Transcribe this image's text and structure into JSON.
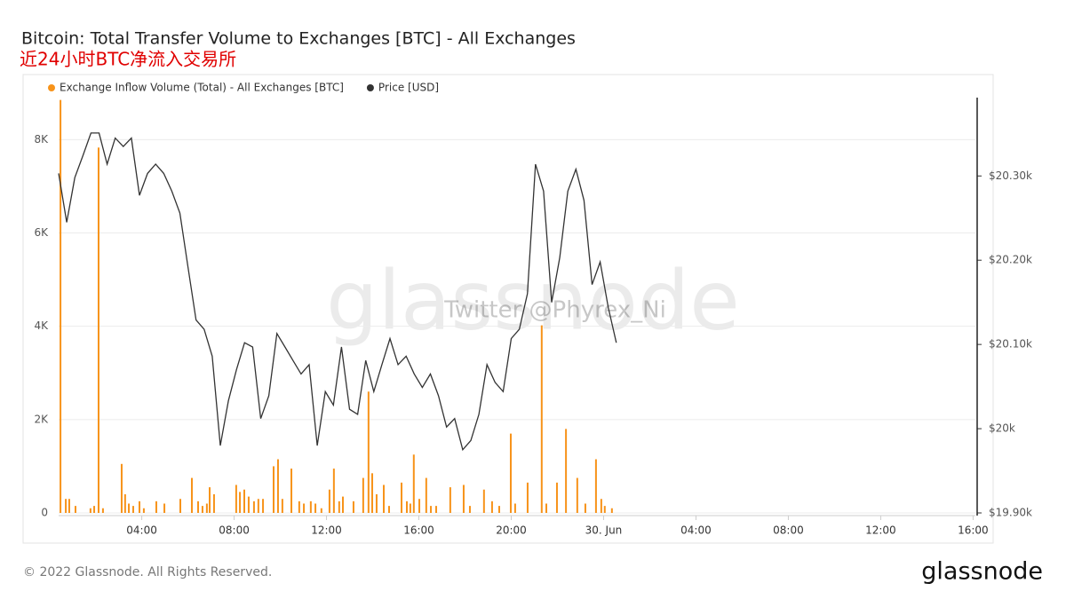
{
  "chart_data": {
    "type": "combo",
    "title": "Bitcoin: Total Transfer Volume to Exchanges [BTC] - All Exchanges",
    "subtitle": "近24小时BTC净流入交易所",
    "watermark": "glassnode",
    "annotation": "Twitter @Phyrex_Ni",
    "footer": "© 2022 Glassnode. All Rights Reserved.",
    "logo": "glassnode",
    "grid": true,
    "xlim": [
      0.4,
      40.1
    ],
    "xticks": [
      {
        "value": 4,
        "label": "04:00"
      },
      {
        "value": 8,
        "label": "08:00"
      },
      {
        "value": 12,
        "label": "12:00"
      },
      {
        "value": 16,
        "label": "16:00"
      },
      {
        "value": 20,
        "label": "20:00"
      },
      {
        "value": 24,
        "label": "30. Jun"
      },
      {
        "value": 28,
        "label": "04:00"
      },
      {
        "value": 32,
        "label": "08:00"
      },
      {
        "value": 36,
        "label": "12:00"
      },
      {
        "value": 40,
        "label": "16:00"
      }
    ],
    "ylim": [
      0,
      8900
    ],
    "yticks": [
      0,
      {
        "value": 2000,
        "label": "2K"
      },
      {
        "value": 4000,
        "label": "4K"
      },
      {
        "value": 6000,
        "label": "6K"
      },
      {
        "value": 8000,
        "label": "8K"
      }
    ],
    "y2lim": [
      19900,
      20393
    ],
    "y2ticks": [
      {
        "value": 19900,
        "label": "$19.90k"
      },
      {
        "value": 20000,
        "label": "$20k"
      },
      {
        "value": 20100,
        "label": "$20.10k"
      },
      {
        "value": 20200,
        "label": "$20.20k"
      },
      {
        "value": 20300,
        "label": "$20.30k"
      }
    ],
    "series": [
      {
        "name": "Exchange Inflow Volume (Total) - All Exchanges [BTC]",
        "type": "bar",
        "color": "#f7931a",
        "x": [
          0.48,
          0.71,
          0.86,
          1.13,
          1.78,
          1.94,
          2.13,
          2.32,
          3.13,
          3.28,
          3.44,
          3.63,
          3.9,
          4.09,
          4.63,
          4.98,
          5.67,
          6.17,
          6.44,
          6.63,
          6.82,
          6.94,
          7.13,
          8.09,
          8.25,
          8.44,
          8.63,
          8.86,
          9.05,
          9.25,
          9.71,
          9.9,
          10.09,
          10.48,
          10.82,
          11.02,
          11.32,
          11.52,
          11.78,
          12.13,
          12.32,
          12.55,
          12.71,
          13.17,
          13.59,
          13.82,
          13.98,
          14.17,
          14.48,
          14.71,
          15.25,
          15.48,
          15.63,
          15.78,
          16.02,
          16.32,
          16.52,
          16.75,
          17.36,
          17.94,
          18.21,
          18.82,
          19.17,
          19.48,
          19.98,
          20.17,
          20.71,
          21.32,
          21.52,
          21.98,
          22.37,
          22.86,
          23.21,
          23.67,
          23.9,
          24.05,
          24.36
        ],
        "values": [
          8850,
          300,
          300,
          150,
          100,
          150,
          7830,
          100,
          1050,
          400,
          200,
          150,
          250,
          100,
          250,
          200,
          300,
          750,
          250,
          150,
          200,
          550,
          400,
          600,
          450,
          500,
          350,
          250,
          300,
          300,
          1000,
          1150,
          300,
          950,
          250,
          200,
          250,
          200,
          100,
          500,
          950,
          250,
          350,
          250,
          750,
          2600,
          850,
          400,
          600,
          150,
          650,
          250,
          200,
          1250,
          300,
          750,
          150,
          150,
          550,
          600,
          150,
          500,
          250,
          150,
          1700,
          200,
          650,
          4020,
          200,
          650,
          1800,
          750,
          200,
          1150,
          300,
          150,
          100
        ]
      },
      {
        "name": "Price [USD]",
        "type": "line",
        "axis": "y2",
        "color": "#333333",
        "x": [
          0.4,
          0.75,
          1.1,
          1.45,
          1.8,
          2.15,
          2.5,
          2.85,
          3.2,
          3.55,
          3.9,
          4.25,
          4.6,
          4.95,
          5.3,
          5.65,
          6,
          6.35,
          6.7,
          7.05,
          7.4,
          7.75,
          8.1,
          8.45,
          8.8,
          9.15,
          9.5,
          9.85,
          10.2,
          10.55,
          10.9,
          11.25,
          11.6,
          11.95,
          12.3,
          12.65,
          13,
          13.35,
          13.7,
          14.05,
          14.4,
          14.75,
          15.1,
          15.45,
          15.8,
          16.15,
          16.5,
          16.85,
          17.2,
          17.55,
          17.9,
          18.25,
          18.6,
          18.95,
          19.3,
          19.65,
          20,
          20.35,
          20.7,
          21.05,
          21.4,
          21.75,
          22.1,
          22.45,
          22.8,
          23.15,
          23.5,
          23.85,
          24.2,
          24.55
        ],
        "values": [
          20303,
          20245,
          20298,
          20324,
          20351,
          20351,
          20314,
          20345,
          20335,
          20345,
          20277,
          20303,
          20314,
          20303,
          20282,
          20256,
          20192,
          20129,
          20118,
          20086,
          19980,
          20033,
          20070,
          20102,
          20097,
          20012,
          20039,
          20113,
          20097,
          20081,
          20065,
          20076,
          19980,
          20044,
          20028,
          20097,
          20023,
          20017,
          20081,
          20044,
          20076,
          20107,
          20076,
          20086,
          20065,
          20049,
          20065,
          20039,
          20002,
          20012,
          19975,
          19986,
          20017,
          20076,
          20055,
          20044,
          20107,
          20118,
          20160,
          20314,
          20282,
          20150,
          20203,
          20282,
          20308,
          20271,
          20171,
          20198,
          20144,
          20102
        ]
      }
    ]
  }
}
